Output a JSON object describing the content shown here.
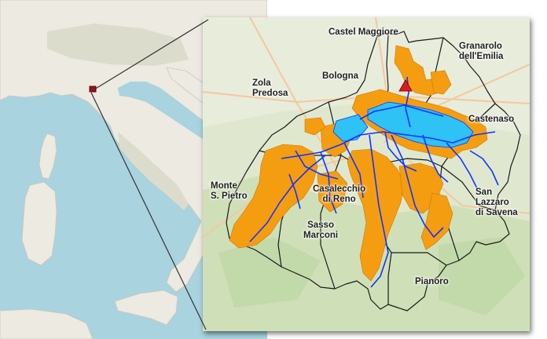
{
  "colors": {
    "sea": "#a9d3de",
    "land": "#eceae1",
    "boundary_line": "#1a1a1a",
    "service_area_fill": "#f59d11",
    "pipeline_network": "#1133ff",
    "urban_network_fill": "#2ec2f5",
    "marker_fill": "#dd1d1d"
  },
  "icons": {
    "facility_marker": "red-triangle-icon",
    "location_marker": "red-square-icon"
  },
  "labels": {
    "castel_maggiore": "Castel Maggiore",
    "granarolo_l1": "Granarolo",
    "granarolo_l2": "dell'Emilia",
    "bologna": "Bologna",
    "zola_l1": "Zola",
    "zola_l2": "Predosa",
    "castenaso": "Castenaso",
    "casalecchio_l1": "Casalecchio",
    "casalecchio_l2": "di Reno",
    "monte_l1": "Monte",
    "monte_l2": "S. Pietro",
    "sasso_l1": "Sasso",
    "sasso_l2": "Marconi",
    "san_lazzaro_l1": "San",
    "san_lazzaro_l2": "Lazzaro",
    "san_lazzaro_l3": "di Savena",
    "pianoro": "Pianoro"
  }
}
